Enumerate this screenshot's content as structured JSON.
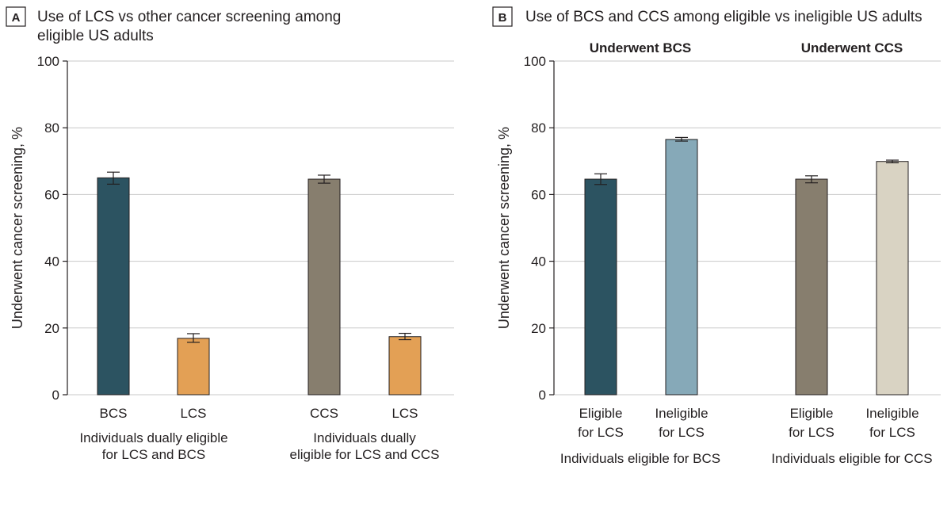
{
  "chart_data": [
    {
      "type": "bar",
      "panel_label": "A",
      "title_lines": [
        "Use of LCS vs other cancer screening among",
        "eligible US adults"
      ],
      "ylabel": "Underwent cancer screening, %",
      "ylim": [
        0,
        100
      ],
      "yticks": [
        "0",
        "20",
        "40",
        "60",
        "80",
        "100"
      ],
      "grid": true,
      "subtitles": [],
      "groups": [
        {
          "label_lines": [
            "Individuals dually eligible",
            "for LCS and BCS"
          ],
          "bars": [
            {
              "category": "BCS",
              "value": 65.0,
              "ci": [
                63.1,
                66.7
              ],
              "color": "#2c5361"
            },
            {
              "category": "LCS",
              "value": 16.9,
              "ci": [
                15.7,
                18.3
              ],
              "color": "#e3a055"
            }
          ]
        },
        {
          "label_lines": [
            "Individuals dually",
            "eligible for LCS and CCS"
          ],
          "bars": [
            {
              "category": "CCS",
              "value": 64.6,
              "ci": [
                63.4,
                65.8
              ],
              "color": "#877e6e"
            },
            {
              "category": "LCS",
              "value": 17.4,
              "ci": [
                16.5,
                18.4
              ],
              "color": "#e3a055"
            }
          ]
        }
      ]
    },
    {
      "type": "bar",
      "panel_label": "B",
      "title_lines": [
        "Use of BCS and CCS among eligible vs ineligible US adults"
      ],
      "ylabel": "Underwent cancer screening, %",
      "ylim": [
        0,
        100
      ],
      "yticks": [
        "0",
        "20",
        "40",
        "60",
        "80",
        "100"
      ],
      "grid": true,
      "subtitles": [
        "Underwent BCS",
        "Underwent CCS"
      ],
      "groups": [
        {
          "label_lines": [
            "Individuals eligible for BCS"
          ],
          "bars": [
            {
              "category_lines": [
                "Eligible",
                "for LCS"
              ],
              "value": 64.6,
              "ci": [
                63.0,
                66.2
              ],
              "color": "#2c5361"
            },
            {
              "category_lines": [
                "Ineligible",
                "for LCS"
              ],
              "value": 76.5,
              "ci": [
                76.0,
                77.1
              ],
              "color": "#86a9b8"
            }
          ]
        },
        {
          "label_lines": [
            "Individuals eligible for CCS"
          ],
          "bars": [
            {
              "category_lines": [
                "Eligible",
                "for LCS"
              ],
              "value": 64.6,
              "ci": [
                63.5,
                65.6
              ],
              "color": "#877e6e"
            },
            {
              "category_lines": [
                "Ineligible",
                "for LCS"
              ],
              "value": 69.9,
              "ci": [
                69.5,
                70.3
              ],
              "color": "#d9d3c3"
            }
          ]
        }
      ]
    }
  ]
}
